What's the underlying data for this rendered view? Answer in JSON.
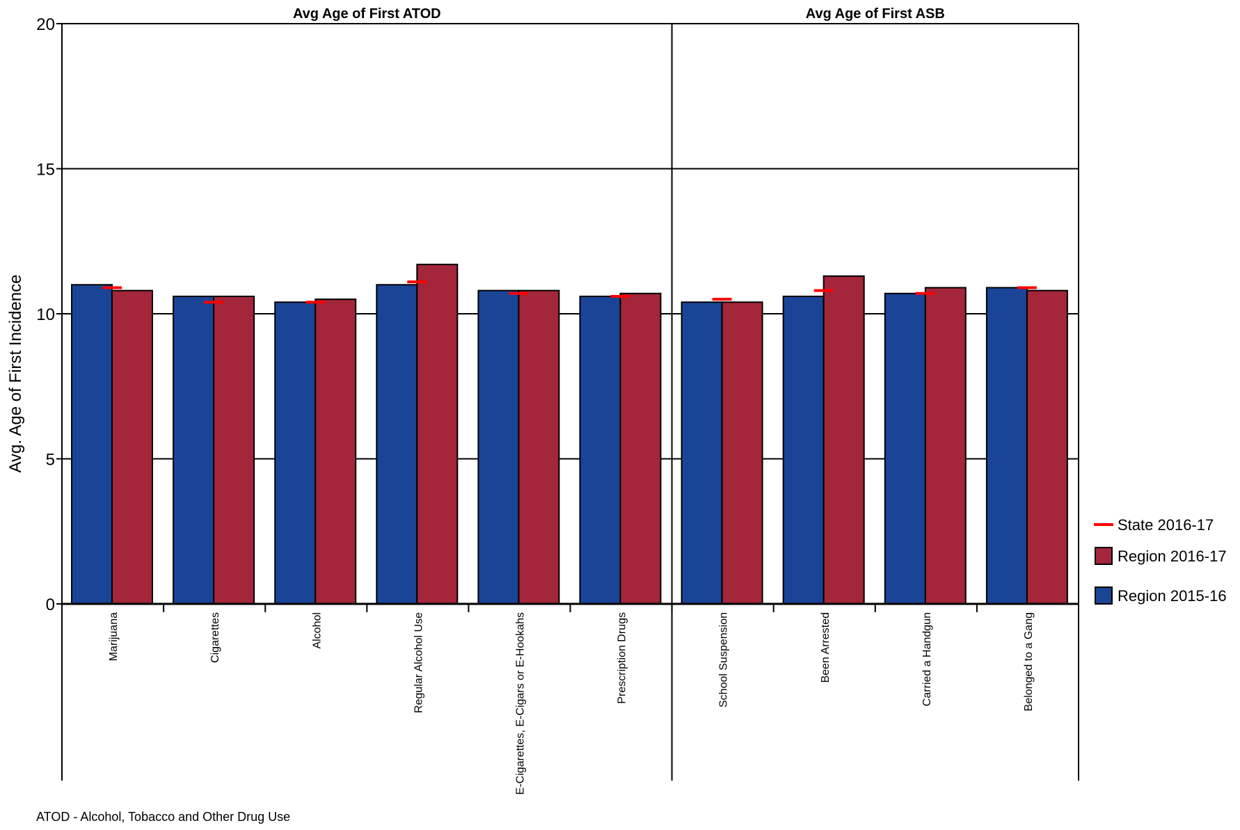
{
  "chart_data": {
    "type": "bar",
    "ylabel": "Avg. Age of First Incidence",
    "ylim": [
      0,
      20
    ],
    "yticks": [
      0,
      5,
      10,
      15,
      20
    ],
    "grid": true,
    "panels": [
      {
        "title": "Avg Age of First ATOD",
        "categories": [
          "Marijuana",
          "Cigarettes",
          "Alcohol",
          "Regular Alcohol Use",
          "E-Cigarettes, E-Cigars or E-Hookahs",
          "Prescription Drugs"
        ]
      },
      {
        "title": "Avg Age of First ASB",
        "categories": [
          "School Suspension",
          "Been Arrested",
          "Carried a Handgun",
          "Belonged to a Gang"
        ]
      }
    ],
    "categories": [
      "Marijuana",
      "Cigarettes",
      "Alcohol",
      "Regular Alcohol Use",
      "E-Cigarettes, E-Cigars or E-Hookahs",
      "Prescription Drugs",
      "School Suspension",
      "Been Arrested",
      "Carried a Handgun",
      "Belonged to a Gang"
    ],
    "series": [
      {
        "name": "Region 2015-16",
        "color": "#1a4597",
        "values": [
          11.0,
          10.6,
          10.4,
          11.0,
          10.8,
          10.6,
          10.4,
          10.6,
          10.7,
          10.9
        ]
      },
      {
        "name": "Region 2016-17",
        "color": "#a3263a",
        "values": [
          10.8,
          10.6,
          10.5,
          11.7,
          10.8,
          10.7,
          10.4,
          11.3,
          10.9,
          10.8
        ]
      }
    ],
    "markers": {
      "name": "State 2016-17",
      "color": "#ff0000",
      "values": [
        10.9,
        10.4,
        10.4,
        11.1,
        10.7,
        10.6,
        10.5,
        10.8,
        10.7,
        10.9
      ]
    },
    "legend": {
      "position": "right",
      "items": [
        {
          "label": "State 2016-17",
          "kind": "line",
          "color": "#ff0000"
        },
        {
          "label": "Region 2016-17",
          "kind": "box",
          "color": "#a3263a"
        },
        {
          "label": "Region 2015-16",
          "kind": "box",
          "color": "#1a4597"
        }
      ]
    }
  },
  "footnote": "ATOD - Alcohol, Tobacco and Other Drug Use"
}
